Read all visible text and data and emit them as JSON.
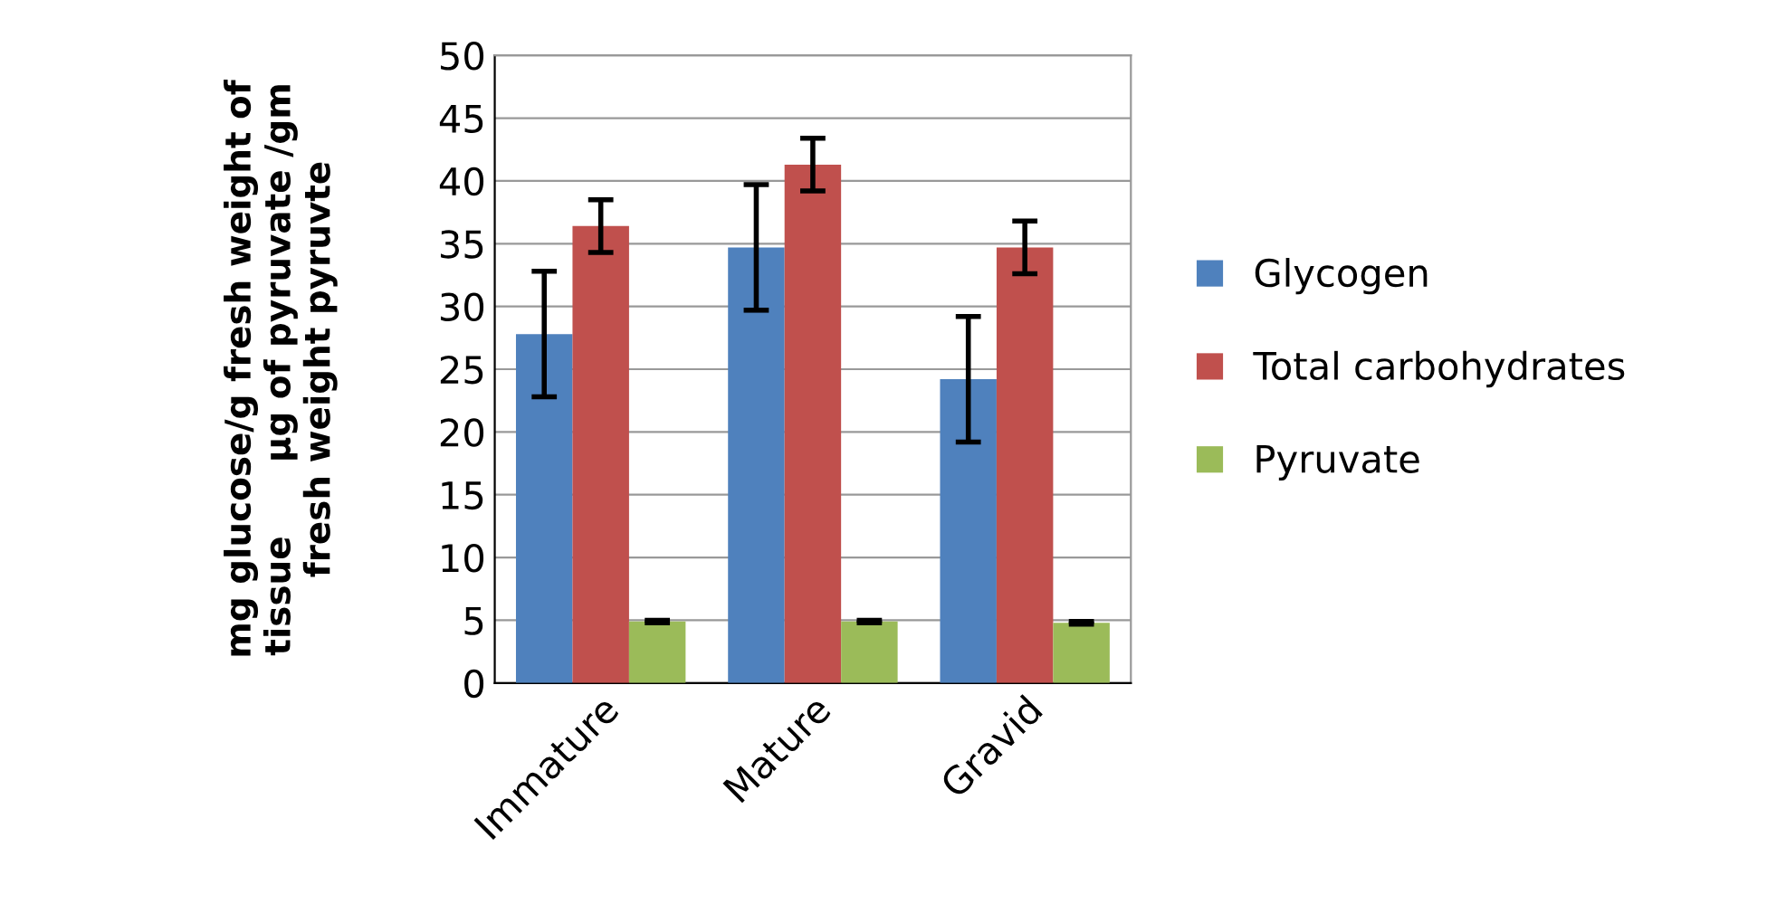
{
  "chart_data": {
    "type": "bar",
    "ylabel": "mg glucose/g fresh weight of\ntissue      µg of pyruvate /gm\nfresh weight pyruvte",
    "categories": [
      "Immature",
      "Mature",
      "Gravid"
    ],
    "series": [
      {
        "name": "Glycogen",
        "color": "#4f81bd",
        "values": [
          27.8,
          34.7,
          24.2
        ],
        "errors": [
          5,
          5,
          5
        ]
      },
      {
        "name": "Total carbohydrates",
        "color": "#c0504d",
        "values": [
          36.4,
          41.3,
          34.7
        ],
        "errors": [
          2.1,
          2.1,
          2.1
        ]
      },
      {
        "name": "Pyruvate",
        "color": "#9bbb59",
        "values": [
          4.9,
          4.9,
          4.8
        ],
        "errors": [
          0.1,
          0.1,
          0.1
        ]
      }
    ],
    "ylim": [
      0,
      50
    ],
    "yticks": [
      0,
      5,
      10,
      15,
      20,
      25,
      30,
      35,
      40,
      45,
      50
    ],
    "grid": "y",
    "legend": "right"
  }
}
